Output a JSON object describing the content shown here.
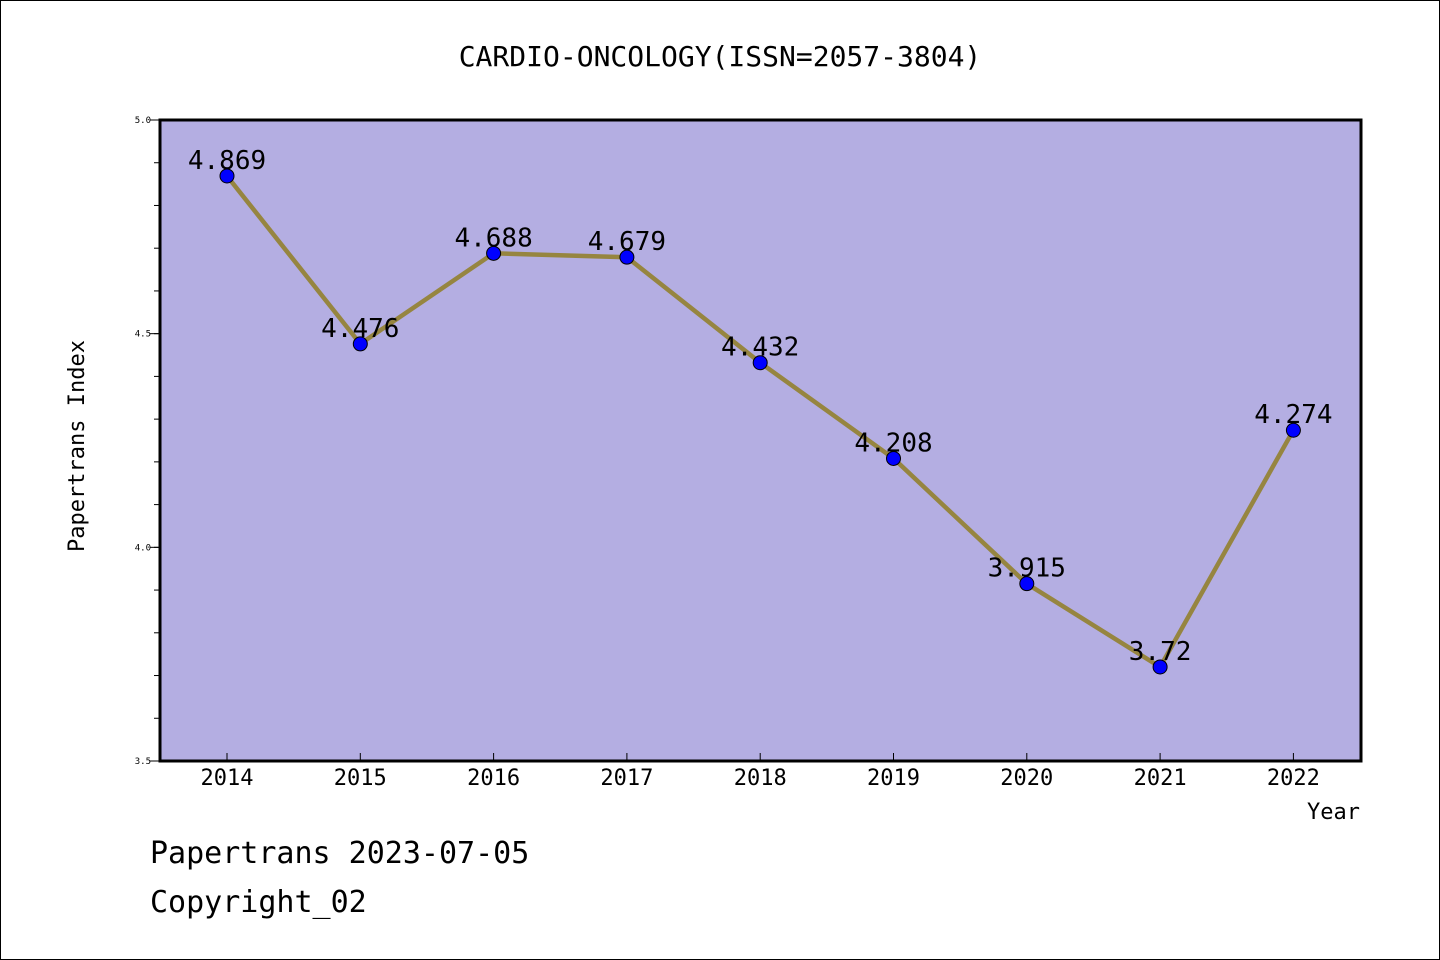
{
  "footer": {
    "line1": "Papertrans 2023-07-05",
    "line2": "Copyright_02"
  },
  "chart_data": {
    "type": "line",
    "title": "CARDIO-ONCOLOGY(ISSN=2057-3804)",
    "xlabel": "Year",
    "ylabel": "Papertrans Index",
    "categories": [
      "2014",
      "2015",
      "2016",
      "2017",
      "2018",
      "2019",
      "2020",
      "2021",
      "2022"
    ],
    "values": [
      4.869,
      4.476,
      4.688,
      4.679,
      4.432,
      4.208,
      3.915,
      3.72,
      4.274
    ],
    "data_labels": [
      "4.869",
      "4.476",
      "4.688",
      "4.679",
      "4.432",
      "4.208",
      "3.915",
      "3.72",
      "4.274"
    ],
    "ylim": [
      3.5,
      5.0
    ],
    "yticks": [
      "3.5",
      "4.0",
      "4.5",
      "5.0"
    ],
    "grid": false,
    "colors": {
      "plot_background": "#b4aee2",
      "line": "#968540",
      "marker": "#0000ff"
    }
  }
}
